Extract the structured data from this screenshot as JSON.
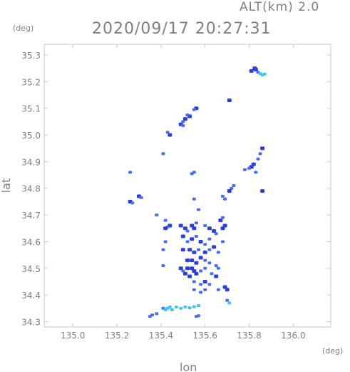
{
  "chart_data": {
    "type": "scatter",
    "header": {
      "altitude": "ALT(km)  2.0",
      "timestamp": "2020/09/17 20:27:31"
    },
    "xlabel": "lon",
    "ylabel": "lat",
    "x_unit": "(deg)",
    "y_unit": "(deg)",
    "xlim": [
      134.87,
      136.17
    ],
    "ylim": [
      34.28,
      35.34
    ],
    "x_ticks": [
      "135.0",
      "135.2",
      "135.4",
      "135.6",
      "135.8",
      "136.0"
    ],
    "y_ticks": [
      "34.3",
      "34.4",
      "34.5",
      "34.6",
      "34.7",
      "34.8",
      "34.9",
      "35.0",
      "35.1",
      "35.2",
      "35.3"
    ],
    "colors": {
      "strong": "#2a3fe0",
      "medium": "#4a6cf5",
      "light": "#3ec6f0",
      "frame": "#c8c8c8",
      "text": "#808080"
    },
    "echo_cells": [
      {
        "x": 135.81,
        "y": 35.24,
        "level": "strong"
      },
      {
        "x": 135.83,
        "y": 35.245,
        "level": "strong"
      },
      {
        "x": 135.84,
        "y": 35.235,
        "level": "medium"
      },
      {
        "x": 135.85,
        "y": 35.23,
        "level": "light"
      },
      {
        "x": 135.86,
        "y": 35.225,
        "level": "light"
      },
      {
        "x": 135.87,
        "y": 35.228,
        "level": "light"
      },
      {
        "x": 135.825,
        "y": 35.25,
        "level": "strong"
      },
      {
        "x": 135.71,
        "y": 35.13,
        "level": "strong"
      },
      {
        "x": 135.56,
        "y": 35.1,
        "level": "strong"
      },
      {
        "x": 135.55,
        "y": 35.095,
        "level": "medium"
      },
      {
        "x": 135.53,
        "y": 35.07,
        "level": "strong"
      },
      {
        "x": 135.51,
        "y": 35.06,
        "level": "strong"
      },
      {
        "x": 135.5,
        "y": 35.05,
        "level": "medium"
      },
      {
        "x": 135.52,
        "y": 35.075,
        "level": "medium"
      },
      {
        "x": 135.49,
        "y": 35.04,
        "level": "strong"
      },
      {
        "x": 135.5,
        "y": 35.035,
        "level": "medium"
      },
      {
        "x": 135.44,
        "y": 35.0,
        "level": "strong"
      },
      {
        "x": 135.43,
        "y": 35.01,
        "level": "medium"
      },
      {
        "x": 135.41,
        "y": 34.93,
        "level": "medium"
      },
      {
        "x": 135.86,
        "y": 34.95,
        "level": "strong"
      },
      {
        "x": 135.85,
        "y": 34.93,
        "level": "medium"
      },
      {
        "x": 135.84,
        "y": 34.91,
        "level": "medium"
      },
      {
        "x": 135.82,
        "y": 34.89,
        "level": "strong"
      },
      {
        "x": 135.81,
        "y": 34.88,
        "level": "strong"
      },
      {
        "x": 135.8,
        "y": 34.875,
        "level": "medium"
      },
      {
        "x": 135.78,
        "y": 34.87,
        "level": "medium"
      },
      {
        "x": 135.83,
        "y": 34.86,
        "level": "medium"
      },
      {
        "x": 135.26,
        "y": 34.86,
        "level": "medium"
      },
      {
        "x": 135.55,
        "y": 34.86,
        "level": "medium"
      },
      {
        "x": 135.54,
        "y": 34.855,
        "level": "medium"
      },
      {
        "x": 135.72,
        "y": 34.8,
        "level": "medium"
      },
      {
        "x": 135.71,
        "y": 34.79,
        "level": "strong"
      },
      {
        "x": 135.73,
        "y": 34.81,
        "level": "medium"
      },
      {
        "x": 135.86,
        "y": 34.79,
        "level": "strong"
      },
      {
        "x": 135.68,
        "y": 34.77,
        "level": "medium"
      },
      {
        "x": 135.69,
        "y": 34.76,
        "level": "medium"
      },
      {
        "x": 135.3,
        "y": 34.77,
        "level": "strong"
      },
      {
        "x": 135.31,
        "y": 34.765,
        "level": "medium"
      },
      {
        "x": 135.26,
        "y": 34.75,
        "level": "strong"
      },
      {
        "x": 135.27,
        "y": 34.745,
        "level": "medium"
      },
      {
        "x": 135.55,
        "y": 34.76,
        "level": "medium"
      },
      {
        "x": 135.57,
        "y": 34.72,
        "level": "medium"
      },
      {
        "x": 135.38,
        "y": 34.7,
        "level": "medium"
      },
      {
        "x": 135.42,
        "y": 34.68,
        "level": "medium"
      },
      {
        "x": 135.44,
        "y": 34.66,
        "level": "strong"
      },
      {
        "x": 135.43,
        "y": 34.655,
        "level": "medium"
      },
      {
        "x": 135.42,
        "y": 34.65,
        "level": "strong"
      },
      {
        "x": 135.49,
        "y": 34.66,
        "level": "strong"
      },
      {
        "x": 135.51,
        "y": 34.65,
        "level": "strong"
      },
      {
        "x": 135.52,
        "y": 34.64,
        "level": "medium"
      },
      {
        "x": 135.54,
        "y": 34.66,
        "level": "strong"
      },
      {
        "x": 135.55,
        "y": 34.65,
        "level": "strong"
      },
      {
        "x": 135.56,
        "y": 34.67,
        "level": "medium"
      },
      {
        "x": 135.6,
        "y": 34.66,
        "level": "medium"
      },
      {
        "x": 135.62,
        "y": 34.65,
        "level": "strong"
      },
      {
        "x": 135.64,
        "y": 34.64,
        "level": "strong"
      },
      {
        "x": 135.65,
        "y": 34.63,
        "level": "medium"
      },
      {
        "x": 135.67,
        "y": 34.68,
        "level": "strong"
      },
      {
        "x": 135.68,
        "y": 34.69,
        "level": "medium"
      },
      {
        "x": 135.68,
        "y": 34.65,
        "level": "strong"
      },
      {
        "x": 135.69,
        "y": 34.66,
        "level": "strong"
      },
      {
        "x": 135.5,
        "y": 34.62,
        "level": "strong"
      },
      {
        "x": 135.52,
        "y": 34.6,
        "level": "medium"
      },
      {
        "x": 135.54,
        "y": 34.61,
        "level": "strong"
      },
      {
        "x": 135.56,
        "y": 34.62,
        "level": "medium"
      },
      {
        "x": 135.58,
        "y": 34.6,
        "level": "strong"
      },
      {
        "x": 135.6,
        "y": 34.59,
        "level": "medium"
      },
      {
        "x": 135.62,
        "y": 34.61,
        "level": "medium"
      },
      {
        "x": 135.5,
        "y": 34.57,
        "level": "strong"
      },
      {
        "x": 135.53,
        "y": 34.57,
        "level": "strong"
      },
      {
        "x": 135.55,
        "y": 34.56,
        "level": "strong"
      },
      {
        "x": 135.57,
        "y": 34.57,
        "level": "medium"
      },
      {
        "x": 135.6,
        "y": 34.56,
        "level": "strong"
      },
      {
        "x": 135.62,
        "y": 34.57,
        "level": "medium"
      },
      {
        "x": 135.64,
        "y": 34.58,
        "level": "strong"
      },
      {
        "x": 135.66,
        "y": 34.56,
        "level": "medium"
      },
      {
        "x": 135.68,
        "y": 34.6,
        "level": "medium"
      },
      {
        "x": 135.42,
        "y": 34.6,
        "level": "medium"
      },
      {
        "x": 135.41,
        "y": 34.57,
        "level": "medium"
      },
      {
        "x": 135.52,
        "y": 34.53,
        "level": "strong"
      },
      {
        "x": 135.54,
        "y": 34.53,
        "level": "strong"
      },
      {
        "x": 135.56,
        "y": 34.52,
        "level": "strong"
      },
      {
        "x": 135.58,
        "y": 34.54,
        "level": "strong"
      },
      {
        "x": 135.6,
        "y": 34.53,
        "level": "medium"
      },
      {
        "x": 135.62,
        "y": 34.52,
        "level": "medium"
      },
      {
        "x": 135.65,
        "y": 34.51,
        "level": "medium"
      },
      {
        "x": 135.52,
        "y": 34.5,
        "level": "strong"
      },
      {
        "x": 135.54,
        "y": 34.5,
        "level": "strong"
      },
      {
        "x": 135.55,
        "y": 34.49,
        "level": "strong"
      },
      {
        "x": 135.56,
        "y": 34.48,
        "level": "strong"
      },
      {
        "x": 135.58,
        "y": 34.49,
        "level": "medium"
      },
      {
        "x": 135.6,
        "y": 34.5,
        "level": "medium"
      },
      {
        "x": 135.53,
        "y": 34.47,
        "level": "strong"
      },
      {
        "x": 135.5,
        "y": 34.49,
        "level": "medium"
      },
      {
        "x": 135.51,
        "y": 34.48,
        "level": "strong"
      },
      {
        "x": 135.49,
        "y": 34.5,
        "level": "strong"
      },
      {
        "x": 135.63,
        "y": 34.48,
        "level": "medium"
      },
      {
        "x": 135.65,
        "y": 34.47,
        "level": "strong"
      },
      {
        "x": 135.66,
        "y": 34.5,
        "level": "medium"
      },
      {
        "x": 135.41,
        "y": 34.51,
        "level": "medium"
      },
      {
        "x": 135.55,
        "y": 34.45,
        "level": "medium"
      },
      {
        "x": 135.58,
        "y": 34.44,
        "level": "medium"
      },
      {
        "x": 135.6,
        "y": 34.45,
        "level": "strong"
      },
      {
        "x": 135.62,
        "y": 34.44,
        "level": "medium"
      },
      {
        "x": 135.55,
        "y": 34.42,
        "level": "medium"
      },
      {
        "x": 135.58,
        "y": 34.41,
        "level": "medium"
      },
      {
        "x": 135.6,
        "y": 34.42,
        "level": "medium"
      },
      {
        "x": 135.66,
        "y": 34.42,
        "level": "medium"
      },
      {
        "x": 135.69,
        "y": 34.43,
        "level": "strong"
      },
      {
        "x": 135.7,
        "y": 34.42,
        "level": "strong"
      },
      {
        "x": 135.7,
        "y": 34.38,
        "level": "medium"
      },
      {
        "x": 135.71,
        "y": 34.37,
        "level": "light"
      },
      {
        "x": 135.35,
        "y": 34.32,
        "level": "medium"
      },
      {
        "x": 135.36,
        "y": 34.325,
        "level": "medium"
      },
      {
        "x": 135.38,
        "y": 34.33,
        "level": "medium"
      },
      {
        "x": 135.41,
        "y": 34.35,
        "level": "medium"
      },
      {
        "x": 135.42,
        "y": 34.345,
        "level": "light"
      },
      {
        "x": 135.43,
        "y": 34.35,
        "level": "light"
      },
      {
        "x": 135.44,
        "y": 34.355,
        "level": "light"
      },
      {
        "x": 135.45,
        "y": 34.345,
        "level": "light"
      },
      {
        "x": 135.47,
        "y": 34.355,
        "level": "light"
      },
      {
        "x": 135.49,
        "y": 34.35,
        "level": "light"
      },
      {
        "x": 135.51,
        "y": 34.355,
        "level": "light"
      },
      {
        "x": 135.53,
        "y": 34.352,
        "level": "light"
      },
      {
        "x": 135.55,
        "y": 34.356,
        "level": "light"
      },
      {
        "x": 135.57,
        "y": 34.36,
        "level": "light"
      },
      {
        "x": 135.56,
        "y": 34.32,
        "level": "medium"
      },
      {
        "x": 135.57,
        "y": 34.322,
        "level": "medium"
      }
    ]
  }
}
